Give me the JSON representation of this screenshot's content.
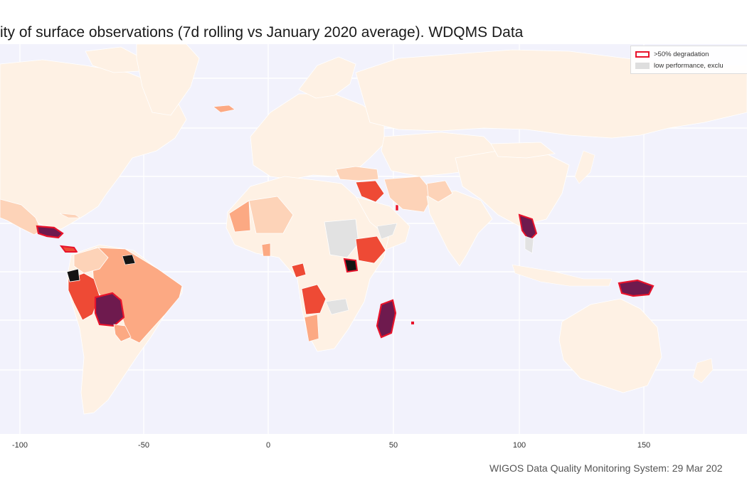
{
  "title": "ity of surface observations (7d rolling vs January 2020 average). WDQMS Data",
  "legend": [
    {
      "label": ">50% degradation",
      "style": "red-outline"
    },
    {
      "label": "low performance, exclu",
      "style": "grey-fill"
    }
  ],
  "x_axis": {
    "ticks": [
      "-100",
      "-50",
      "0",
      "50",
      "100",
      "150"
    ]
  },
  "footer": "WIGOS Data Quality Monitoring System: 29 Mar 202",
  "colors": {
    "ocean": "#f2f2fc",
    "land_low": "#fef1e4",
    "light": "#fdd3b8",
    "medium": "#fca983",
    "high": "#ee4a35",
    "severe": "#6e1a4e",
    "black": "#141414",
    "excluded": "#e2e2e2",
    "degradation_outline": "#e8132b"
  }
}
